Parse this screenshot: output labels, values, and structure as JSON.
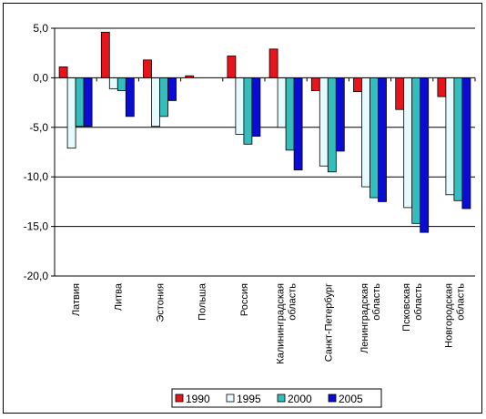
{
  "chart_data": {
    "type": "bar",
    "categories": [
      [
        "Латвия"
      ],
      [
        "Литва"
      ],
      [
        "Эстония"
      ],
      [
        "Польша"
      ],
      [
        "Россия"
      ],
      [
        "Калининградская",
        "область"
      ],
      [
        "Санкт-Петербург"
      ],
      [
        "Ленинградская",
        "область"
      ],
      [
        "Псковская",
        "область"
      ],
      [
        "Новгородская",
        "область"
      ]
    ],
    "series": [
      {
        "name": "1990",
        "color": "#e8141c",
        "values": [
          1.1,
          4.6,
          1.8,
          0.2,
          2.2,
          2.9,
          -1.3,
          -1.4,
          -3.2,
          -1.9
        ]
      },
      {
        "name": "1995",
        "color": "#e6fbff",
        "values": [
          -7.1,
          -1.1,
          -4.9,
          0,
          -5.7,
          -5.0,
          -8.9,
          -11.0,
          -13.1,
          -11.8
        ]
      },
      {
        "name": "2000",
        "color": "#33bdbd",
        "values": [
          -4.9,
          -1.3,
          -3.9,
          0,
          -6.7,
          -7.3,
          -9.5,
          -12.1,
          -14.7,
          -12.4
        ]
      },
      {
        "name": "2005",
        "color": "#0b0bd6",
        "values": [
          -4.9,
          -3.9,
          -2.3,
          0,
          -5.9,
          -9.3,
          -7.4,
          -12.5,
          -15.6,
          -13.2
        ]
      }
    ],
    "yticks": [
      "5,0",
      "0,0",
      "-5,0",
      "-10,0",
      "-15,0",
      "-20,0"
    ],
    "ylim": [
      -20,
      5
    ],
    "grid": true,
    "legend": "bottom"
  }
}
